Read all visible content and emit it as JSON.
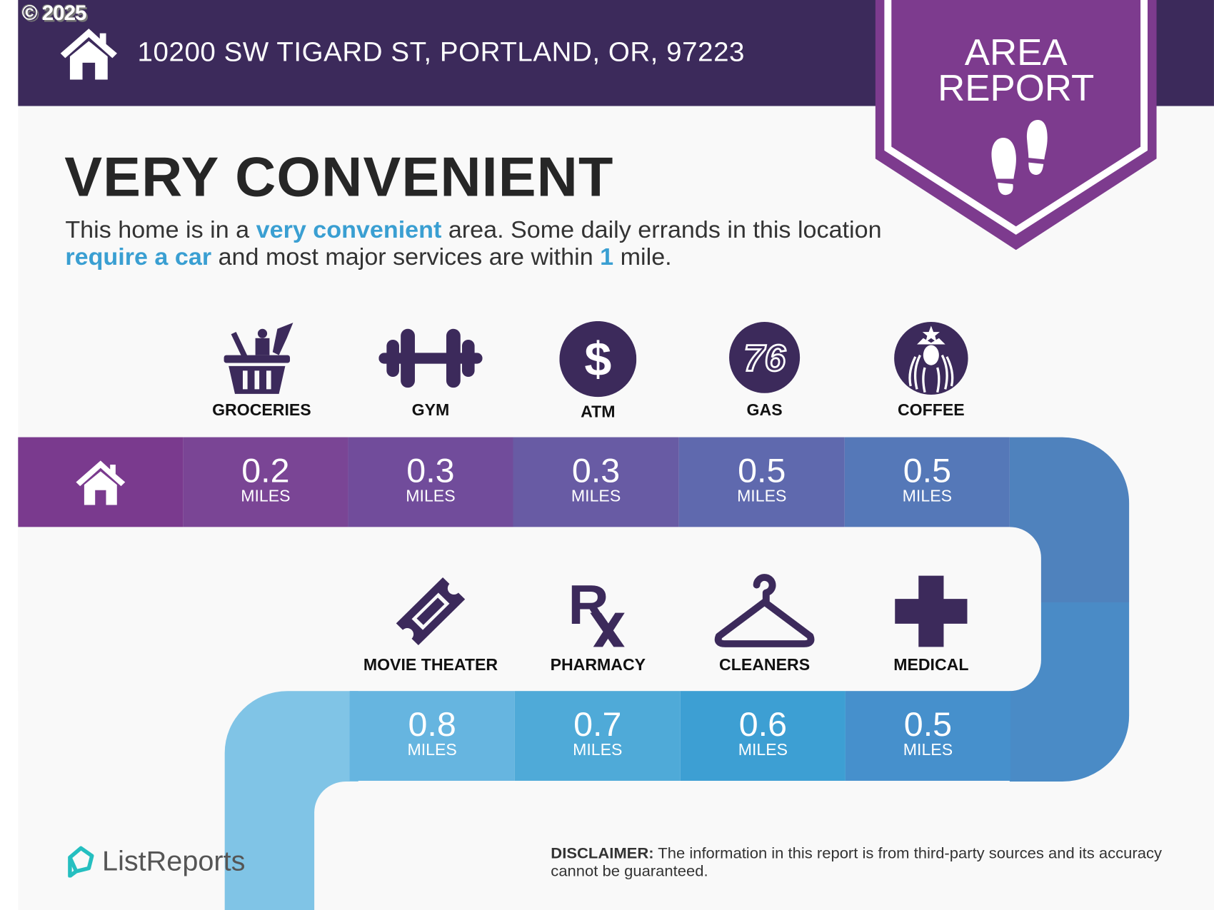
{
  "copyright": "© 2025",
  "header": {
    "address": "10200 SW TIGARD ST, PORTLAND, OR, 97223",
    "icon": "house-icon"
  },
  "banner": {
    "line1": "AREA",
    "line2": "REPORT",
    "icon": "footprints-icon"
  },
  "title": "VERY CONVENIENT",
  "description": {
    "p1": "This home is in a ",
    "h1": "very convenient",
    "p2": " area. Some daily errands in this location ",
    "h2": "require a car",
    "p3": " and most major services are within ",
    "h3": "1",
    "p4": " mile."
  },
  "row1": [
    {
      "label": "GROCERIES",
      "distance": "0.2",
      "unit": "MILES",
      "icon": "grocery-basket-icon"
    },
    {
      "label": "GYM",
      "distance": "0.3",
      "unit": "MILES",
      "icon": "dumbbell-icon"
    },
    {
      "label": "ATM",
      "distance": "0.3",
      "unit": "MILES",
      "icon": "dollar-icon"
    },
    {
      "label": "GAS",
      "distance": "0.5",
      "unit": "MILES",
      "icon": "76-logo-icon"
    },
    {
      "label": "COFFEE",
      "distance": "0.5",
      "unit": "MILES",
      "icon": "starbucks-logo-icon"
    }
  ],
  "row2": [
    {
      "label": "MOVIE THEATER",
      "distance": "0.8",
      "unit": "MILES",
      "icon": "ticket-icon"
    },
    {
      "label": "PHARMACY",
      "distance": "0.7",
      "unit": "MILES",
      "icon": "rx-icon"
    },
    {
      "label": "CLEANERS",
      "distance": "0.6",
      "unit": "MILES",
      "icon": "hanger-icon"
    },
    {
      "label": "MEDICAL",
      "distance": "0.5",
      "unit": "MILES",
      "icon": "medical-cross-icon"
    }
  ],
  "logo": {
    "text": "ListReports"
  },
  "disclaimer": {
    "label": "DISCLAIMER:",
    "text": " The information in this report is from third-party sources and its accuracy cannot be guaranteed."
  },
  "colors": {
    "header": "#3c2a5b",
    "banner": "#7d3b8e",
    "icon": "#3c2a5b",
    "highlight": "#3a9fd2",
    "row1": [
      "#7a3a8e",
      "#7a4595",
      "#714c9b",
      "#685ba4",
      "#5f69ae",
      "#5578b8",
      "#4f82bd"
    ],
    "row2": [
      "#80c4e6",
      "#66b5e0",
      "#4faad8",
      "#3d9fd3",
      "#4690cc"
    ]
  }
}
